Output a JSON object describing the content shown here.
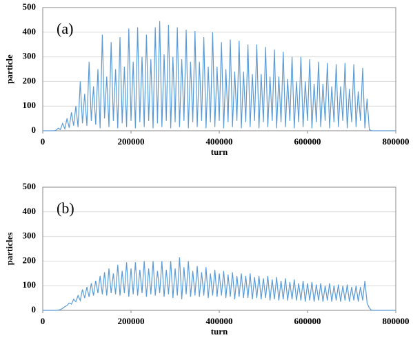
{
  "chart_data": [
    {
      "type": "line",
      "annotation": "(a)",
      "xlabel": "turn",
      "ylabel": "particle",
      "grid": true,
      "xlim": [
        0,
        800000
      ],
      "xticks": [
        0,
        200000,
        400000,
        600000,
        800000
      ],
      "ylim": [
        0,
        500
      ],
      "yticks": [
        0,
        100,
        200,
        300,
        400,
        500
      ],
      "x": [
        0,
        5000,
        10000,
        15000,
        20000,
        25000,
        30000,
        35000,
        40000,
        45000,
        50000,
        55000,
        60000,
        65000,
        70000,
        75000,
        80000,
        85000,
        90000,
        95000,
        100000,
        105000,
        110000,
        115000,
        120000,
        125000,
        130000,
        135000,
        140000,
        145000,
        150000,
        155000,
        160000,
        165000,
        170000,
        175000,
        180000,
        185000,
        190000,
        195000,
        200000,
        205000,
        210000,
        215000,
        220000,
        225000,
        230000,
        235000,
        240000,
        245000,
        250000,
        255000,
        260000,
        265000,
        270000,
        275000,
        280000,
        285000,
        290000,
        295000,
        300000,
        305000,
        310000,
        315000,
        320000,
        325000,
        330000,
        335000,
        340000,
        345000,
        350000,
        355000,
        360000,
        365000,
        370000,
        375000,
        380000,
        385000,
        390000,
        395000,
        400000,
        405000,
        410000,
        415000,
        420000,
        425000,
        430000,
        435000,
        440000,
        445000,
        450000,
        455000,
        460000,
        465000,
        470000,
        475000,
        480000,
        485000,
        490000,
        495000,
        500000,
        505000,
        510000,
        515000,
        520000,
        525000,
        530000,
        535000,
        540000,
        545000,
        550000,
        555000,
        560000,
        565000,
        570000,
        575000,
        580000,
        585000,
        590000,
        595000,
        600000,
        605000,
        610000,
        615000,
        620000,
        625000,
        630000,
        635000,
        640000,
        645000,
        650000,
        655000,
        660000,
        665000,
        670000,
        675000,
        680000,
        685000,
        690000,
        695000,
        700000,
        705000,
        710000,
        715000,
        720000,
        725000,
        730000,
        735000,
        740000,
        745000,
        800000
      ],
      "series": [
        {
          "color": "#5b9bd5",
          "values": [
            0,
            0,
            0,
            0,
            0,
            0,
            2,
            10,
            5,
            30,
            8,
            50,
            12,
            75,
            20,
            100,
            15,
            200,
            30,
            150,
            20,
            280,
            40,
            180,
            25,
            250,
            10,
            390,
            50,
            220,
            15,
            360,
            40,
            250,
            10,
            380,
            30,
            260,
            15,
            415,
            40,
            280,
            10,
            420,
            35,
            300,
            15,
            390,
            40,
            290,
            10,
            420,
            30,
            445,
            15,
            310,
            40,
            430,
            10,
            300,
            35,
            420,
            15,
            290,
            40,
            410,
            10,
            280,
            35,
            405,
            15,
            280,
            40,
            380,
            10,
            260,
            35,
            400,
            15,
            260,
            40,
            360,
            10,
            250,
            35,
            370,
            15,
            240,
            40,
            365,
            10,
            240,
            35,
            350,
            15,
            230,
            40,
            350,
            10,
            230,
            35,
            340,
            15,
            220,
            40,
            330,
            10,
            220,
            35,
            320,
            15,
            210,
            40,
            300,
            10,
            200,
            35,
            300,
            15,
            200,
            40,
            290,
            10,
            190,
            35,
            280,
            15,
            190,
            40,
            275,
            10,
            180,
            35,
            270,
            15,
            180,
            40,
            275,
            10,
            170,
            35,
            270,
            15,
            160,
            40,
            255,
            10,
            130,
            5,
            0,
            0
          ]
        }
      ]
    },
    {
      "type": "line",
      "annotation": "(b)",
      "xlabel": "turn",
      "ylabel": "particles",
      "grid": true,
      "xlim": [
        0,
        800000
      ],
      "xticks": [
        0,
        200000,
        400000,
        600000,
        800000
      ],
      "ylim": [
        0,
        500
      ],
      "yticks": [
        0,
        100,
        200,
        300,
        400,
        500
      ],
      "x": [
        0,
        5000,
        10000,
        15000,
        20000,
        25000,
        30000,
        35000,
        40000,
        45000,
        50000,
        55000,
        60000,
        65000,
        70000,
        75000,
        80000,
        85000,
        90000,
        95000,
        100000,
        105000,
        110000,
        115000,
        120000,
        125000,
        130000,
        135000,
        140000,
        145000,
        150000,
        155000,
        160000,
        165000,
        170000,
        175000,
        180000,
        185000,
        190000,
        195000,
        200000,
        205000,
        210000,
        215000,
        220000,
        225000,
        230000,
        235000,
        240000,
        245000,
        250000,
        255000,
        260000,
        265000,
        270000,
        275000,
        280000,
        285000,
        290000,
        295000,
        300000,
        305000,
        310000,
        315000,
        320000,
        325000,
        330000,
        335000,
        340000,
        345000,
        350000,
        355000,
        360000,
        365000,
        370000,
        375000,
        380000,
        385000,
        390000,
        395000,
        400000,
        405000,
        410000,
        415000,
        420000,
        425000,
        430000,
        435000,
        440000,
        445000,
        450000,
        455000,
        460000,
        465000,
        470000,
        475000,
        480000,
        485000,
        490000,
        495000,
        500000,
        505000,
        510000,
        515000,
        520000,
        525000,
        530000,
        535000,
        540000,
        545000,
        550000,
        555000,
        560000,
        565000,
        570000,
        575000,
        580000,
        585000,
        590000,
        595000,
        600000,
        605000,
        610000,
        615000,
        620000,
        625000,
        630000,
        635000,
        640000,
        645000,
        650000,
        655000,
        660000,
        665000,
        670000,
        675000,
        680000,
        685000,
        690000,
        695000,
        700000,
        705000,
        710000,
        715000,
        720000,
        725000,
        730000,
        735000,
        740000,
        745000,
        800000
      ],
      "series": [
        {
          "color": "#5b9bd5",
          "values": [
            0,
            0,
            0,
            0,
            0,
            0,
            0,
            1,
            3,
            8,
            15,
            20,
            30,
            25,
            45,
            35,
            60,
            40,
            85,
            50,
            95,
            55,
            110,
            60,
            120,
            70,
            140,
            65,
            155,
            60,
            170,
            70,
            150,
            65,
            185,
            60,
            160,
            70,
            195,
            55,
            170,
            65,
            195,
            60,
            165,
            70,
            200,
            55,
            170,
            65,
            200,
            60,
            160,
            70,
            200,
            55,
            165,
            65,
            200,
            50,
            170,
            60,
            215,
            45,
            175,
            65,
            200,
            55,
            160,
            60,
            180,
            55,
            155,
            60,
            175,
            50,
            150,
            60,
            165,
            55,
            150,
            60,
            160,
            50,
            145,
            55,
            155,
            45,
            140,
            55,
            150,
            50,
            140,
            50,
            150,
            45,
            135,
            50,
            140,
            45,
            130,
            50,
            140,
            40,
            125,
            45,
            135,
            40,
            120,
            45,
            130,
            40,
            115,
            45,
            125,
            40,
            110,
            40,
            120,
            35,
            110,
            40,
            115,
            35,
            105,
            40,
            110,
            35,
            100,
            40,
            110,
            35,
            100,
            40,
            105,
            35,
            100,
            40,
            105,
            35,
            95,
            40,
            100,
            35,
            95,
            40,
            120,
            30,
            10,
            0,
            0
          ]
        }
      ]
    }
  ]
}
